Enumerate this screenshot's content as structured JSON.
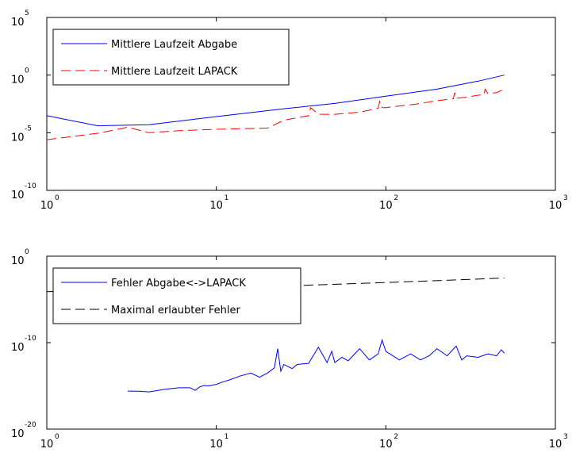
{
  "chart_data": [
    {
      "type": "line",
      "title": "",
      "xlabel": "",
      "ylabel": "",
      "xscale": "log",
      "yscale": "log",
      "xlim": [
        1,
        1000
      ],
      "ylim": [
        1e-10,
        100000.0
      ],
      "grid": false,
      "legend_position": "top-left",
      "x_ticks": [
        {
          "base": "10",
          "exp": "0"
        },
        {
          "base": "10",
          "exp": "1"
        },
        {
          "base": "10",
          "exp": "2"
        },
        {
          "base": "10",
          "exp": "3"
        }
      ],
      "y_ticks": [
        {
          "value": 100000.0,
          "base": "10",
          "exp": "5"
        },
        {
          "value": 1,
          "base": "10",
          "exp": "0"
        },
        {
          "value": 1e-05,
          "base": "10",
          "exp": "-5"
        },
        {
          "value": 1e-10,
          "base": "10",
          "exp": "-10"
        }
      ],
      "series": [
        {
          "name": "Mittlere Laufzeit Abgabe",
          "color": "#0000ff",
          "dash": "solid",
          "x": [
            1,
            2,
            4,
            10,
            25,
            50,
            100,
            200,
            350,
            500
          ],
          "y": [
            0.0003,
            4e-05,
            5e-05,
            0.00025,
            0.0012,
            0.0035,
            0.015,
            0.06,
            0.3,
            1.0
          ]
        },
        {
          "name": "Mittlere Laufzeit LAPACK",
          "color": "#ff0000",
          "dash": "dashed",
          "x": [
            1,
            2,
            3,
            4,
            6,
            10,
            20,
            25,
            30,
            35,
            36,
            40,
            50,
            60,
            70,
            80,
            90,
            92,
            95,
            100,
            150,
            200,
            250,
            255,
            260,
            300,
            350,
            380,
            385,
            400,
            450,
            500
          ],
          "y": [
            2.5e-06,
            9e-06,
            3e-05,
            1e-05,
            1.5e-05,
            2e-05,
            2.5e-05,
            0.00012,
            0.0002,
            0.0003,
            0.0015,
            0.0004,
            0.0004,
            0.0005,
            0.0006,
            0.0009,
            0.0013,
            0.005,
            0.0015,
            0.0015,
            0.003,
            0.006,
            0.009,
            0.03,
            0.01,
            0.012,
            0.018,
            0.02,
            0.06,
            0.025,
            0.03,
            0.06
          ]
        }
      ]
    },
    {
      "type": "line",
      "title": "",
      "xlabel": "",
      "ylabel": "",
      "xscale": "log",
      "yscale": "log",
      "xlim": [
        1,
        1000
      ],
      "ylim": [
        1e-20,
        1
      ],
      "grid": false,
      "legend_position": "top-left",
      "x_ticks": [
        {
          "base": "10",
          "exp": "0"
        },
        {
          "base": "10",
          "exp": "1"
        },
        {
          "base": "10",
          "exp": "2"
        },
        {
          "base": "10",
          "exp": "3"
        }
      ],
      "y_ticks": [
        {
          "value": 1,
          "base": "10",
          "exp": "0"
        },
        {
          "value": 1e-10,
          "base": "10",
          "exp": "-10"
        },
        {
          "value": 1e-20,
          "base": "10",
          "exp": "-20"
        }
      ],
      "series": [
        {
          "name": "Fehler Abgabe<->LAPACK",
          "color": "#0000ff",
          "dash": "solid",
          "x": [
            3,
            3.5,
            4,
            5,
            6,
            7,
            7.5,
            8,
            8.5,
            9,
            10,
            11,
            12,
            14,
            16,
            18,
            20,
            22,
            23,
            24,
            25,
            28,
            30,
            35,
            40,
            45,
            48,
            50,
            55,
            60,
            70,
            80,
            90,
            95,
            100,
            110,
            120,
            140,
            160,
            180,
            200,
            230,
            260,
            280,
            300,
            350,
            400,
            450,
            480,
            500
          ],
          "y": [
            2.5e-16,
            2.4e-16,
            2e-16,
            4e-16,
            6e-16,
            6e-16,
            3e-16,
            8e-16,
            1.1e-15,
            1e-15,
            1.5e-15,
            3e-15,
            5e-15,
            1.5e-14,
            3e-14,
            1e-14,
            3e-14,
            1.2e-13,
            2e-11,
            5e-14,
            3e-13,
            1e-13,
            3e-13,
            4e-13,
            3e-11,
            5e-13,
            1e-11,
            5e-13,
            2e-12,
            8e-13,
            2e-11,
            1e-12,
            5e-12,
            2e-10,
            1e-11,
            3e-12,
            1e-12,
            5e-12,
            1e-12,
            3e-12,
            2e-11,
            3e-12,
            4e-11,
            1e-12,
            3e-12,
            2e-12,
            5e-12,
            3e-12,
            1.5e-11,
            6e-12
          ]
        },
        {
          "name": "Maximal erlaubter Fehler",
          "color": "#000000",
          "dash": "dashed",
          "x": [
            1,
            3,
            10,
            30,
            100,
            300,
            500
          ],
          "y": [
            8e-05,
            0.00012,
            0.00022,
            0.0004,
            0.0009,
            0.002,
            0.003
          ]
        }
      ]
    }
  ]
}
